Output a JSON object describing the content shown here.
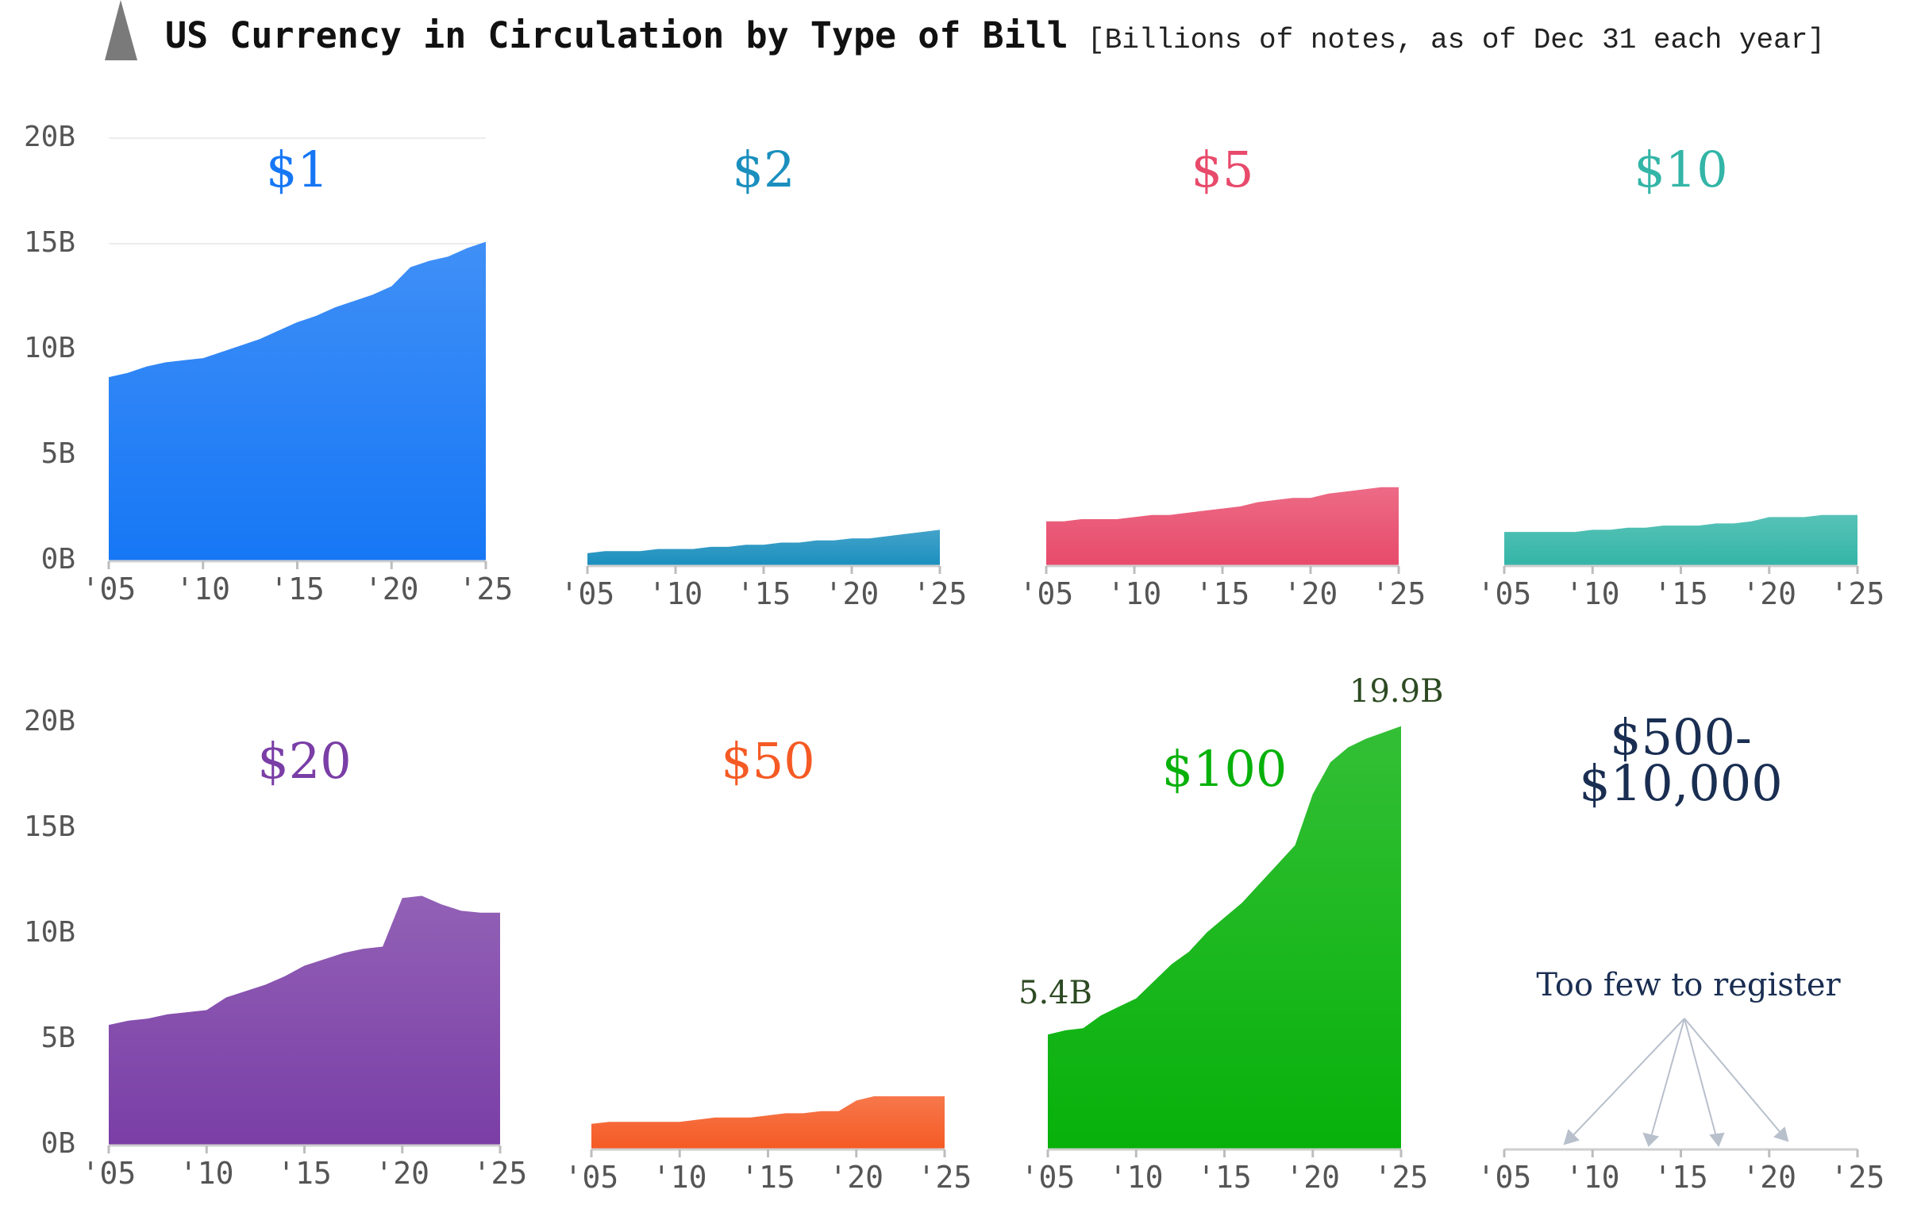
{
  "header": {
    "title": "US Currency in Circulation by Type of Bill",
    "subtitle": "[Billions of notes, as of Dec 31 each year]"
  },
  "y_ticks": [
    "20B",
    "15B",
    "10B",
    "5B",
    "0B"
  ],
  "x_ticks": [
    "'05",
    "'10",
    "'15",
    "'20",
    "'25"
  ],
  "chart_data": [
    {
      "type": "area",
      "title": "$1",
      "color": "#1677f5",
      "x": [
        2005,
        2006,
        2007,
        2008,
        2009,
        2010,
        2011,
        2012,
        2013,
        2014,
        2015,
        2016,
        2017,
        2018,
        2019,
        2020,
        2021,
        2022,
        2023,
        2024,
        2025
      ],
      "values": [
        8.7,
        8.9,
        9.2,
        9.4,
        9.5,
        9.6,
        9.9,
        10.2,
        10.5,
        10.9,
        11.3,
        11.6,
        12.0,
        12.3,
        12.6,
        13.0,
        13.9,
        14.2,
        14.4,
        14.8,
        15.1
      ],
      "ylim": [
        0,
        20
      ],
      "xlim": [
        2005,
        2025
      ]
    },
    {
      "type": "area",
      "title": "$2",
      "color": "#1a8fbe",
      "x": [
        2005,
        2006,
        2007,
        2008,
        2009,
        2010,
        2011,
        2012,
        2013,
        2014,
        2015,
        2016,
        2017,
        2018,
        2019,
        2020,
        2021,
        2022,
        2023,
        2024,
        2025
      ],
      "values": [
        0.6,
        0.7,
        0.7,
        0.7,
        0.8,
        0.8,
        0.8,
        0.9,
        0.9,
        1.0,
        1.0,
        1.1,
        1.1,
        1.2,
        1.2,
        1.3,
        1.3,
        1.4,
        1.5,
        1.6,
        1.7
      ],
      "ylim": [
        0,
        20
      ],
      "xlim": [
        2005,
        2025
      ]
    },
    {
      "type": "area",
      "title": "$5",
      "color": "#e84a6b",
      "x": [
        2005,
        2006,
        2007,
        2008,
        2009,
        2010,
        2011,
        2012,
        2013,
        2014,
        2015,
        2016,
        2017,
        2018,
        2019,
        2020,
        2021,
        2022,
        2023,
        2024,
        2025
      ],
      "values": [
        2.1,
        2.1,
        2.2,
        2.2,
        2.2,
        2.3,
        2.4,
        2.4,
        2.5,
        2.6,
        2.7,
        2.8,
        3.0,
        3.1,
        3.2,
        3.2,
        3.4,
        3.5,
        3.6,
        3.7,
        3.7
      ],
      "ylim": [
        0,
        20
      ],
      "xlim": [
        2005,
        2025
      ]
    },
    {
      "type": "area",
      "title": "$10",
      "color": "#33b5a7",
      "x": [
        2005,
        2006,
        2007,
        2008,
        2009,
        2010,
        2011,
        2012,
        2013,
        2014,
        2015,
        2016,
        2017,
        2018,
        2019,
        2020,
        2021,
        2022,
        2023,
        2024,
        2025
      ],
      "values": [
        1.6,
        1.6,
        1.6,
        1.6,
        1.6,
        1.7,
        1.7,
        1.8,
        1.8,
        1.9,
        1.9,
        1.9,
        2.0,
        2.0,
        2.1,
        2.3,
        2.3,
        2.3,
        2.4,
        2.4,
        2.4
      ],
      "ylim": [
        0,
        20
      ],
      "xlim": [
        2005,
        2025
      ]
    },
    {
      "type": "area",
      "title": "$20",
      "color": "#7a3ea6",
      "x": [
        2005,
        2006,
        2007,
        2008,
        2009,
        2010,
        2011,
        2012,
        2013,
        2014,
        2015,
        2016,
        2017,
        2018,
        2019,
        2020,
        2021,
        2022,
        2023,
        2024,
        2025
      ],
      "values": [
        5.7,
        5.9,
        6.0,
        6.2,
        6.3,
        6.4,
        7.0,
        7.3,
        7.6,
        8.0,
        8.5,
        8.8,
        9.1,
        9.3,
        9.4,
        11.7,
        11.8,
        11.4,
        11.1,
        11.0,
        11.0
      ],
      "ylim": [
        0,
        20
      ],
      "xlim": [
        2005,
        2025
      ]
    },
    {
      "type": "area",
      "title": "$50",
      "color": "#f55a24",
      "x": [
        2005,
        2006,
        2007,
        2008,
        2009,
        2010,
        2011,
        2012,
        2013,
        2014,
        2015,
        2016,
        2017,
        2018,
        2019,
        2020,
        2021,
        2022,
        2023,
        2024,
        2025
      ],
      "values": [
        1.2,
        1.3,
        1.3,
        1.3,
        1.3,
        1.3,
        1.4,
        1.5,
        1.5,
        1.5,
        1.6,
        1.7,
        1.7,
        1.8,
        1.8,
        2.3,
        2.5,
        2.5,
        2.5,
        2.5,
        2.5
      ],
      "ylim": [
        0,
        20
      ],
      "xlim": [
        2005,
        2025
      ]
    },
    {
      "type": "area",
      "title": "$100",
      "color": "#07b10a",
      "x": [
        2005,
        2006,
        2007,
        2008,
        2009,
        2010,
        2011,
        2012,
        2013,
        2014,
        2015,
        2016,
        2017,
        2018,
        2019,
        2020,
        2021,
        2022,
        2023,
        2024,
        2025
      ],
      "values": [
        5.4,
        5.6,
        5.7,
        6.3,
        6.7,
        7.1,
        7.9,
        8.7,
        9.3,
        10.2,
        10.9,
        11.6,
        12.5,
        13.4,
        14.3,
        16.7,
        18.2,
        18.9,
        19.3,
        19.6,
        19.9
      ],
      "ylim": [
        0,
        20
      ],
      "xlim": [
        2005,
        2025
      ],
      "annotations": {
        "start": "5.4B",
        "end": "19.9B"
      }
    },
    {
      "type": "area",
      "title": "$500-\n$10,000",
      "color": "#1a2e52",
      "x": [],
      "values": [],
      "ylim": [
        0,
        20
      ],
      "xlim": [
        2005,
        2025
      ],
      "note": "Too few to register"
    }
  ]
}
